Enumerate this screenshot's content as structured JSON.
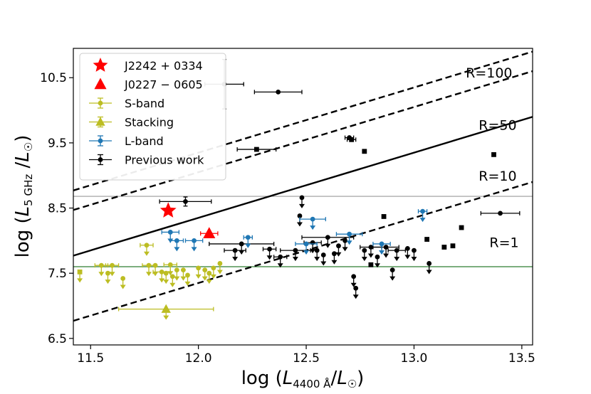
{
  "chart_data": {
    "type": "scatter",
    "title": "",
    "xlabel_prefix": "log (",
    "xlabel_L": "L",
    "xlabel_sub": "4400 Å",
    "xlabel_mid": "/",
    "xlabel_L2": "L",
    "xlabel_sun": "☉",
    "xlabel_suffix": ")",
    "ylabel_prefix": "log (",
    "ylabel_L": "L",
    "ylabel_sub": "5 GHz",
    "ylabel_mid": " /",
    "ylabel_L2": "L",
    "ylabel_sun": "☉",
    "ylabel_suffix": ")",
    "xlim": [
      11.42,
      13.55
    ],
    "ylim": [
      6.4,
      10.95
    ],
    "xticks": [
      11.5,
      12.0,
      12.5,
      13.0,
      13.5
    ],
    "xtick_labels": [
      "11.5",
      "12.0",
      "12.5",
      "13.0",
      "13.5"
    ],
    "yticks": [
      6.5,
      7.5,
      8.5,
      9.5,
      10.5
    ],
    "ytick_labels": [
      "6.5",
      "7.5",
      "8.5",
      "9.5",
      "10.5"
    ],
    "hlines": [
      {
        "y": 8.68,
        "color": "#999999"
      },
      {
        "y": 7.6,
        "color": "#2e7d32"
      }
    ],
    "ratio_lines": [
      {
        "label": "R=100",
        "intercept": -2.65,
        "dashed": true,
        "label_x": 13.24,
        "label_y": 10.5
      },
      {
        "label": "R=50",
        "intercept": -2.95,
        "dashed": true,
        "label_x": 13.3,
        "label_y": 9.7
      },
      {
        "label": "R=10",
        "intercept": -3.65,
        "dashed": false,
        "label_x": 13.3,
        "label_y": 8.92
      },
      {
        "label": "R=1",
        "intercept": -4.65,
        "dashed": true,
        "label_x": 13.35,
        "label_y": 7.9
      }
    ],
    "legend": [
      {
        "label": "J2242 + 0334",
        "marker": "star",
        "color": "#ff0000"
      },
      {
        "label": "J0227 − 0605",
        "marker": "triangle",
        "color": "#ff0000"
      },
      {
        "label": "S-band",
        "marker": "circle-err",
        "color": "#bcbd22"
      },
      {
        "label": "Stacking",
        "marker": "triangle-err",
        "color": "#bcbd22"
      },
      {
        "label": "L-band",
        "marker": "circle-err",
        "color": "#1f77b4"
      },
      {
        "label": "Previous work",
        "marker": "circle-err",
        "color": "#000000"
      }
    ],
    "series": [
      {
        "name": "J2242 + 0334",
        "marker": "star",
        "color": "#ff0000",
        "points": [
          {
            "x": 11.86,
            "y": 8.46
          }
        ]
      },
      {
        "name": "J0227 − 0605",
        "marker": "triangle",
        "color": "#ff0000",
        "points": [
          {
            "x": 12.05,
            "y": 8.11,
            "xerr": 0.04
          }
        ]
      },
      {
        "name": "Stacking",
        "marker": "triangle",
        "color": "#bcbd22",
        "points": [
          {
            "x": 11.85,
            "y": 6.95,
            "xerr": 0.22,
            "ul": true
          }
        ]
      },
      {
        "name": "S-band",
        "marker": "circle",
        "color": "#bcbd22",
        "points": [
          {
            "x": 11.45,
            "y": 7.52,
            "ul": true,
            "m": "sq"
          },
          {
            "x": 11.55,
            "y": 7.62,
            "xerr": 0.03,
            "ul": true
          },
          {
            "x": 11.58,
            "y": 7.5,
            "ul": true
          },
          {
            "x": 11.6,
            "y": 7.62,
            "xerr": 0.03,
            "ul": true
          },
          {
            "x": 11.65,
            "y": 7.42,
            "ul": true
          },
          {
            "x": 11.76,
            "y": 7.93,
            "xerr": 0.03,
            "ul": true
          },
          {
            "x": 11.77,
            "y": 7.62,
            "xerr": 0.03,
            "ul": true
          },
          {
            "x": 11.8,
            "y": 7.62,
            "ul": true
          },
          {
            "x": 11.83,
            "y": 7.52,
            "xerr": 0.04,
            "ul": true
          },
          {
            "x": 11.85,
            "y": 7.5,
            "ul": true
          },
          {
            "x": 11.87,
            "y": 7.63,
            "xerr": 0.03,
            "ul": true
          },
          {
            "x": 11.88,
            "y": 7.45,
            "ul": true
          },
          {
            "x": 11.9,
            "y": 7.55,
            "ul": true
          },
          {
            "x": 11.93,
            "y": 7.55,
            "ul": true
          },
          {
            "x": 11.95,
            "y": 7.47,
            "ul": true
          },
          {
            "x": 12.0,
            "y": 7.58,
            "ul": true
          },
          {
            "x": 12.03,
            "y": 7.55,
            "ul": true
          },
          {
            "x": 12.05,
            "y": 7.5,
            "ul": true
          },
          {
            "x": 12.07,
            "y": 7.58,
            "ul": true
          },
          {
            "x": 12.1,
            "y": 7.65,
            "ul": true
          }
        ]
      },
      {
        "name": "L-band",
        "marker": "circle",
        "color": "#1f77b4",
        "points": [
          {
            "x": 11.87,
            "y": 8.13,
            "xerr": 0.04,
            "ul": true
          },
          {
            "x": 11.9,
            "y": 8.0,
            "xerr": 0.03,
            "ul": true
          },
          {
            "x": 11.98,
            "y": 8.0,
            "xerr": 0.04,
            "ul": true
          },
          {
            "x": 12.23,
            "y": 8.05,
            "xerr": 0.02,
            "ul": true
          },
          {
            "x": 12.53,
            "y": 8.33,
            "xerr": 0.06,
            "ul": true
          },
          {
            "x": 12.5,
            "y": 7.95,
            "xerr": 0.05,
            "ul": true
          },
          {
            "x": 12.7,
            "y": 8.1,
            "xerr": 0.06,
            "ul": true
          },
          {
            "x": 12.85,
            "y": 7.95,
            "xerr": 0.04,
            "ul": true
          },
          {
            "x": 13.04,
            "y": 8.45,
            "xerr": 0.02,
            "ul": true
          }
        ]
      },
      {
        "name": "Previous work",
        "marker": "circle",
        "color": "#000000",
        "points": [
          {
            "x": 12.12,
            "y": 10.4,
            "xerr": 0.09,
            "yerr": 0.38
          },
          {
            "x": 12.37,
            "y": 10.28,
            "xerr": 0.11
          },
          {
            "x": 12.7,
            "y": 9.58,
            "xerr": 0.02
          },
          {
            "x": 13.4,
            "y": 8.42,
            "xerr": 0.09
          },
          {
            "x": 11.94,
            "y": 8.6,
            "xerr": 0.12,
            "yerr": 0.07
          },
          {
            "x": 12.71,
            "y": 9.55,
            "m": "sq",
            "xerr": 0.02
          },
          {
            "x": 12.27,
            "y": 9.4,
            "m": "sq",
            "xerr": 0.09
          },
          {
            "x": 12.77,
            "y": 9.37,
            "m": "sq"
          },
          {
            "x": 13.37,
            "y": 9.32,
            "m": "sq"
          },
          {
            "x": 12.86,
            "y": 8.37,
            "m": "sq"
          },
          {
            "x": 13.22,
            "y": 8.2,
            "m": "sq"
          },
          {
            "x": 13.06,
            "y": 8.02,
            "m": "sq"
          },
          {
            "x": 13.14,
            "y": 7.9,
            "m": "sq"
          },
          {
            "x": 13.18,
            "y": 7.92,
            "m": "sq"
          },
          {
            "x": 12.8,
            "y": 7.63,
            "m": "sq"
          },
          {
            "x": 12.17,
            "y": 7.85,
            "ul": true,
            "xerr": 0.05
          },
          {
            "x": 12.2,
            "y": 7.95,
            "ul": true,
            "xerr": 0.15
          },
          {
            "x": 12.33,
            "y": 7.87,
            "ul": true,
            "xerr": 0.03
          },
          {
            "x": 12.38,
            "y": 7.75,
            "ul": true,
            "xerr": 0.03
          },
          {
            "x": 12.47,
            "y": 8.38,
            "ul": true
          },
          {
            "x": 12.48,
            "y": 8.66,
            "ul": true
          },
          {
            "x": 12.45,
            "y": 7.85,
            "ul": true,
            "xerr": 0.07
          },
          {
            "x": 12.53,
            "y": 7.97,
            "ul": true,
            "xerr": 0.04
          },
          {
            "x": 12.55,
            "y": 7.85,
            "ul": true
          },
          {
            "x": 12.58,
            "y": 7.78,
            "ul": true
          },
          {
            "x": 12.6,
            "y": 8.05,
            "ul": true,
            "xerr": 0.12
          },
          {
            "x": 12.63,
            "y": 7.8,
            "ul": true
          },
          {
            "x": 12.65,
            "y": 7.92,
            "ul": true
          },
          {
            "x": 12.68,
            "y": 8.0,
            "ul": true
          },
          {
            "x": 12.72,
            "y": 7.45,
            "ul": true
          },
          {
            "x": 12.73,
            "y": 7.27,
            "ul": true
          },
          {
            "x": 12.77,
            "y": 7.85,
            "ul": true
          },
          {
            "x": 12.8,
            "y": 7.9,
            "ul": true,
            "xerr": 0.05
          },
          {
            "x": 12.83,
            "y": 7.75,
            "ul": true
          },
          {
            "x": 12.87,
            "y": 7.9,
            "ul": true,
            "xerr": 0.06
          },
          {
            "x": 12.9,
            "y": 7.55,
            "ul": true
          },
          {
            "x": 12.92,
            "y": 7.85,
            "ul": true,
            "xerr": 0.04
          },
          {
            "x": 12.97,
            "y": 7.88,
            "ul": true
          },
          {
            "x": 13.0,
            "y": 7.85,
            "ul": true
          },
          {
            "x": 13.07,
            "y": 7.65,
            "ul": true
          }
        ]
      }
    ]
  }
}
